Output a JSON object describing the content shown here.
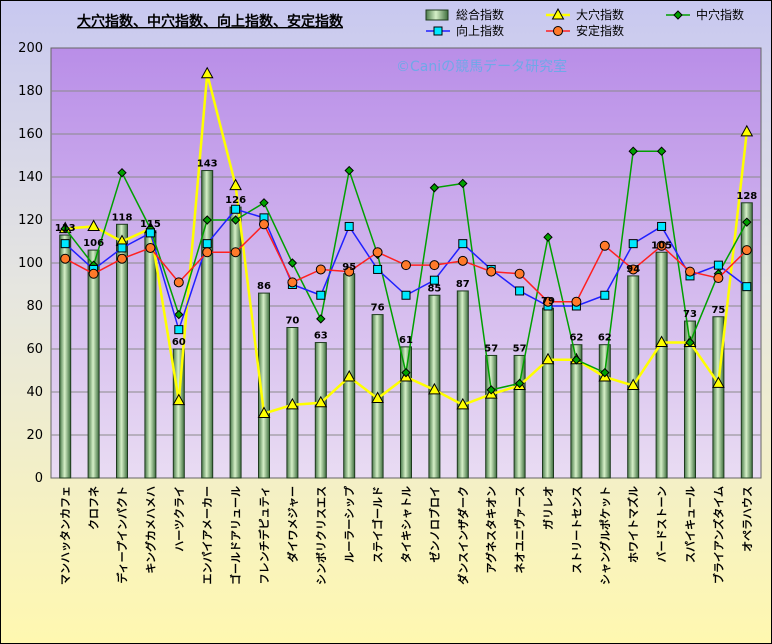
{
  "chart_data": {
    "type": "bar+line",
    "title": "大穴指数、中穴指数、向上指数、安定指数",
    "watermark": "©Caniの競馬データ研究室",
    "ylim": [
      0,
      200
    ],
    "ytick_step": 20,
    "grid": "horizontal",
    "legend_position": "top-right",
    "categories": [
      "マンハッタンカフェ",
      "クロフネ",
      "ディープインパクト",
      "キングカメハメハ",
      "ハーツクライ",
      "エンパイアメーカー",
      "ゴールドアリュール",
      "フレンチデピュティ",
      "ダイワメジャー",
      "シンボリクリスエス",
      "ルーラーシップ",
      "ステイゴールド",
      "タイキシャトル",
      "ゼンノロブロイ",
      "ダンスインザダーク",
      "アグネスタキオン",
      "ネオユニヴァース",
      "ガリレオ",
      "ストリートセンス",
      "シャングルポケット",
      "ホワイトマズル",
      "バードストーン",
      "スパイキュール",
      "ブライアンズタイム",
      "オペラハウス"
    ],
    "bar_series": {
      "name": "総合指数",
      "color": "#9ed29e",
      "values": [
        113,
        106,
        118,
        115,
        60,
        143,
        126,
        86,
        70,
        63,
        95,
        76,
        61,
        85,
        87,
        57,
        57,
        79,
        62,
        62,
        94,
        105,
        73,
        75,
        128
      ]
    },
    "line_series": [
      {
        "name": "大穴指数",
        "color": "#ffff00",
        "marker": "triangle",
        "values": [
          116,
          117,
          110,
          116,
          36,
          188,
          136,
          30,
          34,
          35,
          47,
          37,
          47,
          41,
          34,
          39,
          43,
          55,
          55,
          47,
          43,
          63,
          63,
          44,
          161
        ]
      },
      {
        "name": "中穴指数",
        "color": "#00a000",
        "marker": "diamond",
        "values": [
          116,
          99,
          142,
          116,
          76,
          120,
          120,
          128,
          100,
          74,
          143,
          104,
          49,
          135,
          137,
          41,
          44,
          112,
          55,
          49,
          152,
          152,
          63,
          95,
          119
        ]
      },
      {
        "name": "向上指数",
        "color": "#2020ff",
        "marker": "square",
        "values": [
          109,
          97,
          107,
          114,
          69,
          109,
          125,
          121,
          90,
          85,
          117,
          97,
          85,
          92,
          109,
          97,
          87,
          80,
          80,
          85,
          109,
          117,
          94,
          99,
          89
        ]
      },
      {
        "name": "安定指数",
        "color": "#ff2020",
        "marker": "circle",
        "values": [
          102,
          95,
          102,
          107,
          91,
          105,
          105,
          118,
          91,
          97,
          96,
          105,
          99,
          99,
          101,
          96,
          95,
          82,
          82,
          108,
          97,
          108,
          96,
          93,
          106
        ]
      }
    ]
  }
}
